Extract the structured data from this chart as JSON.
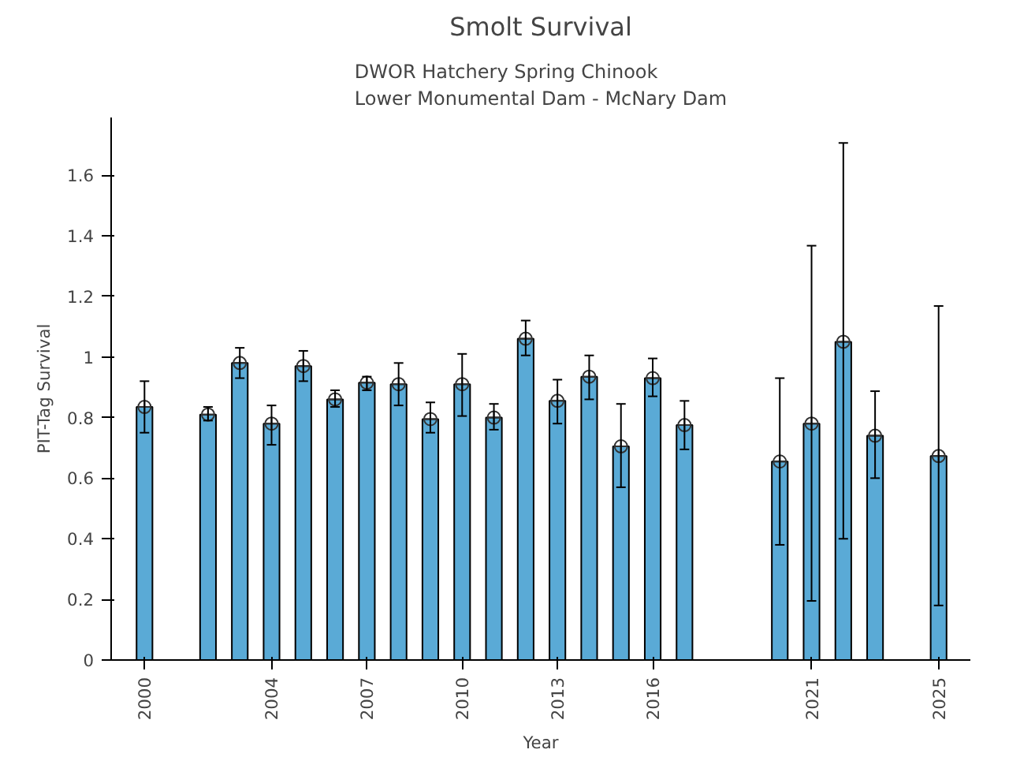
{
  "chart_data": {
    "type": "bar",
    "title": "Smolt Survival",
    "subtitle": "DWOR Hatchery Spring Chinook\nLower Monumental Dam - McNary Dam",
    "xlabel": "Year",
    "ylabel": "PIT-Tag Survival",
    "x": [
      2000,
      2002,
      2003,
      2004,
      2005,
      2006,
      2007,
      2008,
      2009,
      2010,
      2011,
      2012,
      2013,
      2014,
      2015,
      2016,
      2017,
      2020,
      2021,
      2022,
      2023,
      2025
    ],
    "series": [
      {
        "color": "#5aaad6",
        "values": [
          0.835,
          0.81,
          0.98,
          0.78,
          0.97,
          0.86,
          0.915,
          0.91,
          0.795,
          0.91,
          0.8,
          1.06,
          0.855,
          0.935,
          0.705,
          0.93,
          0.775,
          0.655,
          0.78,
          1.05,
          0.74,
          0.673
        ],
        "errors": [
          [
            0.75,
            0.92
          ],
          [
            0.79,
            0.835
          ],
          [
            0.93,
            1.03
          ],
          [
            0.71,
            0.84
          ],
          [
            0.92,
            1.02
          ],
          [
            0.835,
            0.89
          ],
          [
            0.89,
            0.935
          ],
          [
            0.84,
            0.98
          ],
          [
            0.75,
            0.85
          ],
          [
            0.805,
            1.01
          ],
          [
            0.76,
            0.845
          ],
          [
            1.005,
            1.12
          ],
          [
            0.78,
            0.925
          ],
          [
            0.86,
            1.005
          ],
          [
            0.57,
            0.845
          ],
          [
            0.87,
            0.995
          ],
          [
            0.695,
            0.855
          ],
          [
            0.38,
            0.93
          ],
          [
            0.195,
            1.367
          ],
          [
            0.4,
            1.706
          ],
          [
            0.6,
            0.887
          ],
          [
            0.18,
            1.168
          ]
        ]
      },
      {
        "type": "scatter",
        "color": "#333333",
        "marker": "circle",
        "values": [
          0.835,
          0.81,
          0.98,
          0.78,
          0.97,
          0.86,
          0.915,
          0.91,
          0.795,
          0.91,
          0.8,
          1.06,
          0.855,
          0.935,
          0.705,
          0.93,
          0.775,
          0.655,
          0.78,
          1.05,
          0.74,
          0.673
        ]
      }
    ],
    "xlim": [
      1998.95,
      2026
    ],
    "xticks": [
      2000,
      2004,
      2007,
      2010,
      2013,
      2016,
      2021,
      2025
    ],
    "ylim": [
      0,
      1.79
    ],
    "yticks": [
      0,
      0.2,
      0.4,
      0.6,
      0.8,
      1,
      1.2,
      1.4,
      1.6
    ],
    "grid": false
  }
}
